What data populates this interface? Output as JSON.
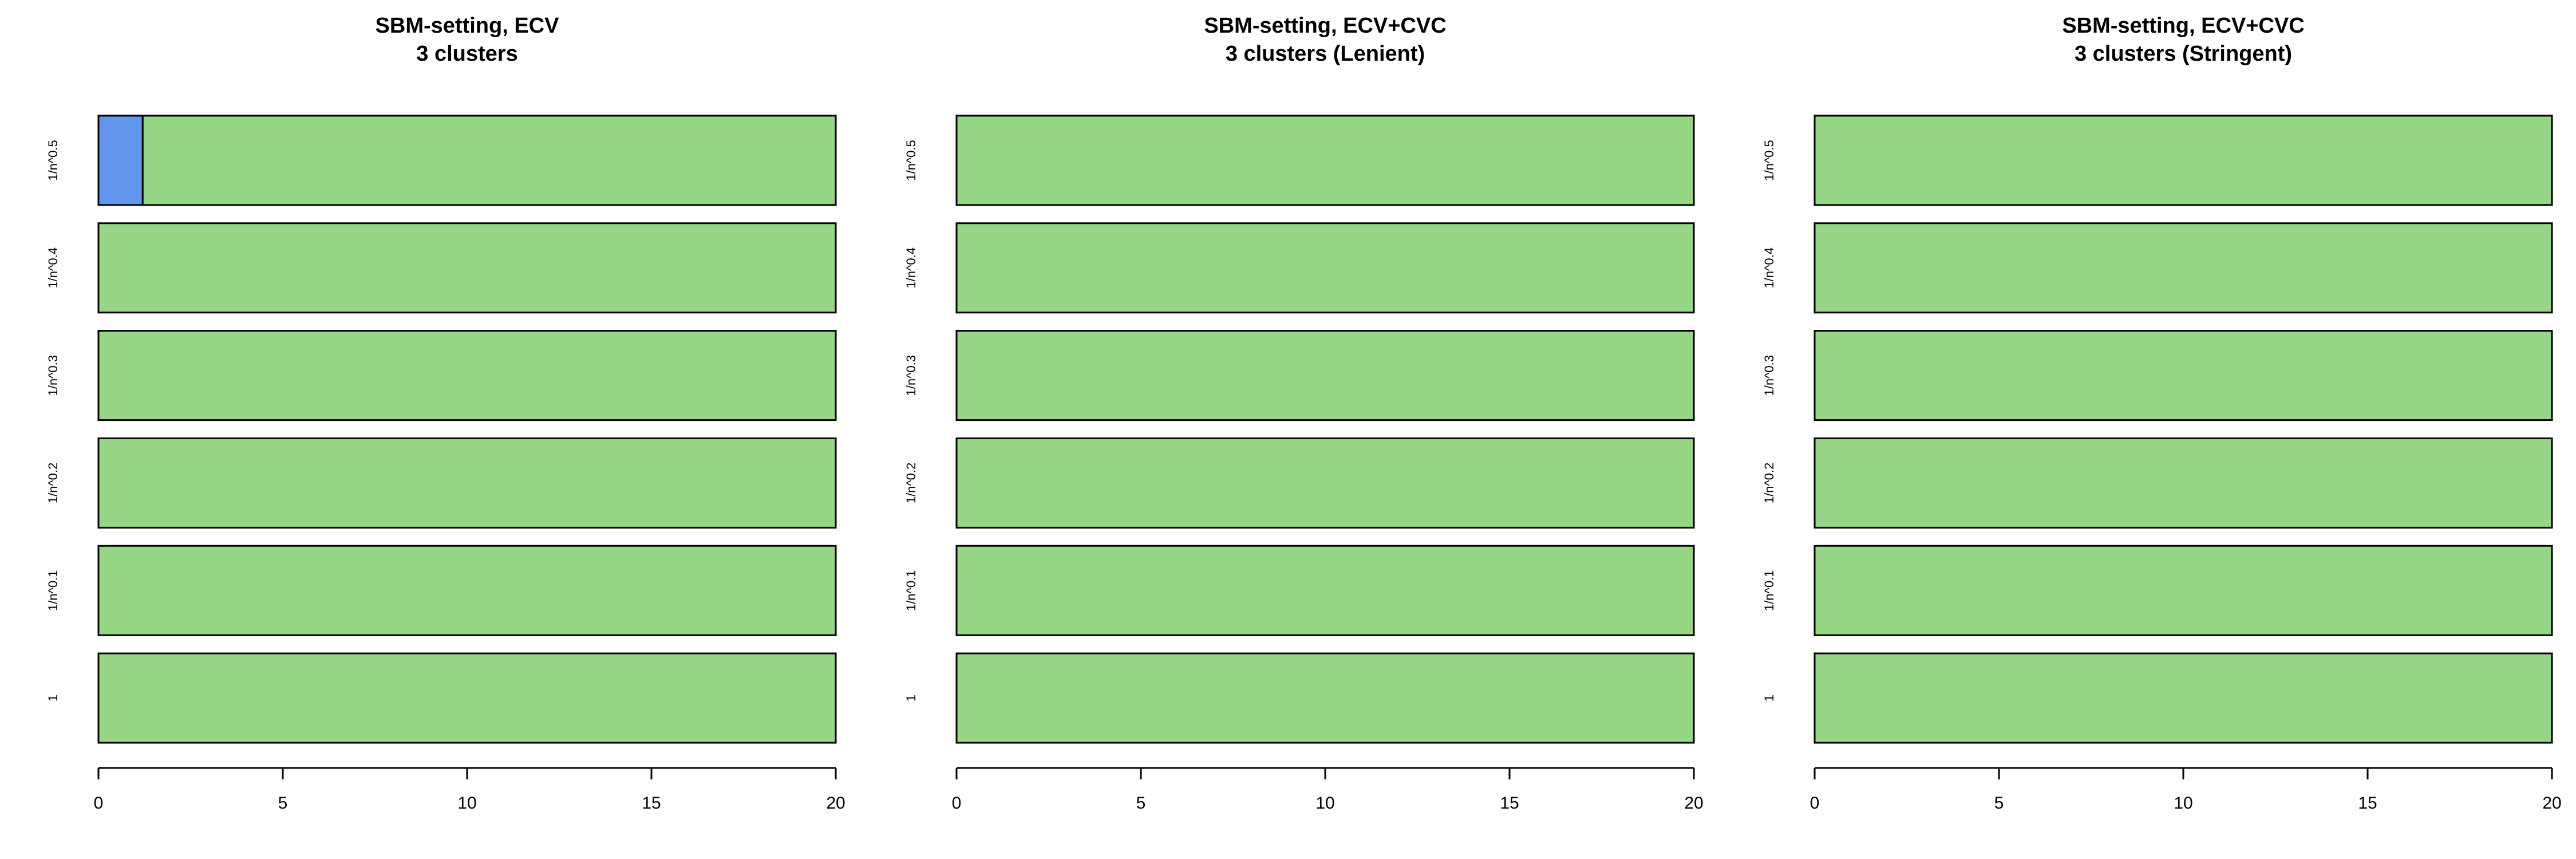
{
  "chart_data": [
    {
      "type": "bar",
      "orientation": "horizontal",
      "stacked": true,
      "title_lines": [
        "SBM-setting, ECV",
        "3 clusters"
      ],
      "categories": [
        "1/n^0.5",
        "1/n^0.4",
        "1/n^0.3",
        "1/n^0.2",
        "1/n^0.1",
        "1"
      ],
      "series": [
        {
          "color": "#6495ED",
          "values": [
            1.2,
            0,
            0,
            0,
            0,
            0
          ]
        },
        {
          "color": "#98D687",
          "values": [
            18.8,
            20,
            20,
            20,
            20,
            20
          ]
        }
      ],
      "xlim": [
        0,
        20
      ],
      "xticks": [
        "0",
        "5",
        "10",
        "15",
        "20"
      ],
      "xlabel": "",
      "ylabel": "",
      "grid": false
    },
    {
      "type": "bar",
      "orientation": "horizontal",
      "stacked": true,
      "title_lines": [
        "SBM-setting, ECV+CVC",
        "3 clusters (Lenient)"
      ],
      "categories": [
        "1/n^0.5",
        "1/n^0.4",
        "1/n^0.3",
        "1/n^0.2",
        "1/n^0.1",
        "1"
      ],
      "series": [
        {
          "color": "#6495ED",
          "values": [
            0,
            0,
            0,
            0,
            0,
            0
          ]
        },
        {
          "color": "#98D687",
          "values": [
            20,
            20,
            20,
            20,
            20,
            20
          ]
        }
      ],
      "xlim": [
        0,
        20
      ],
      "xticks": [
        "0",
        "5",
        "10",
        "15",
        "20"
      ],
      "xlabel": "",
      "ylabel": "",
      "grid": false
    },
    {
      "type": "bar",
      "orientation": "horizontal",
      "stacked": true,
      "title_lines": [
        "SBM-setting, ECV+CVC",
        "3 clusters (Stringent)"
      ],
      "categories": [
        "1/n^0.5",
        "1/n^0.4",
        "1/n^0.3",
        "1/n^0.2",
        "1/n^0.1",
        "1"
      ],
      "series": [
        {
          "color": "#6495ED",
          "values": [
            0,
            0,
            0,
            0,
            0,
            0
          ]
        },
        {
          "color": "#98D687",
          "values": [
            20,
            20,
            20,
            20,
            20,
            20
          ]
        }
      ],
      "xlim": [
        0,
        20
      ],
      "xticks": [
        "0",
        "5",
        "10",
        "15",
        "20"
      ],
      "xlabel": "",
      "ylabel": "",
      "grid": false
    }
  ]
}
